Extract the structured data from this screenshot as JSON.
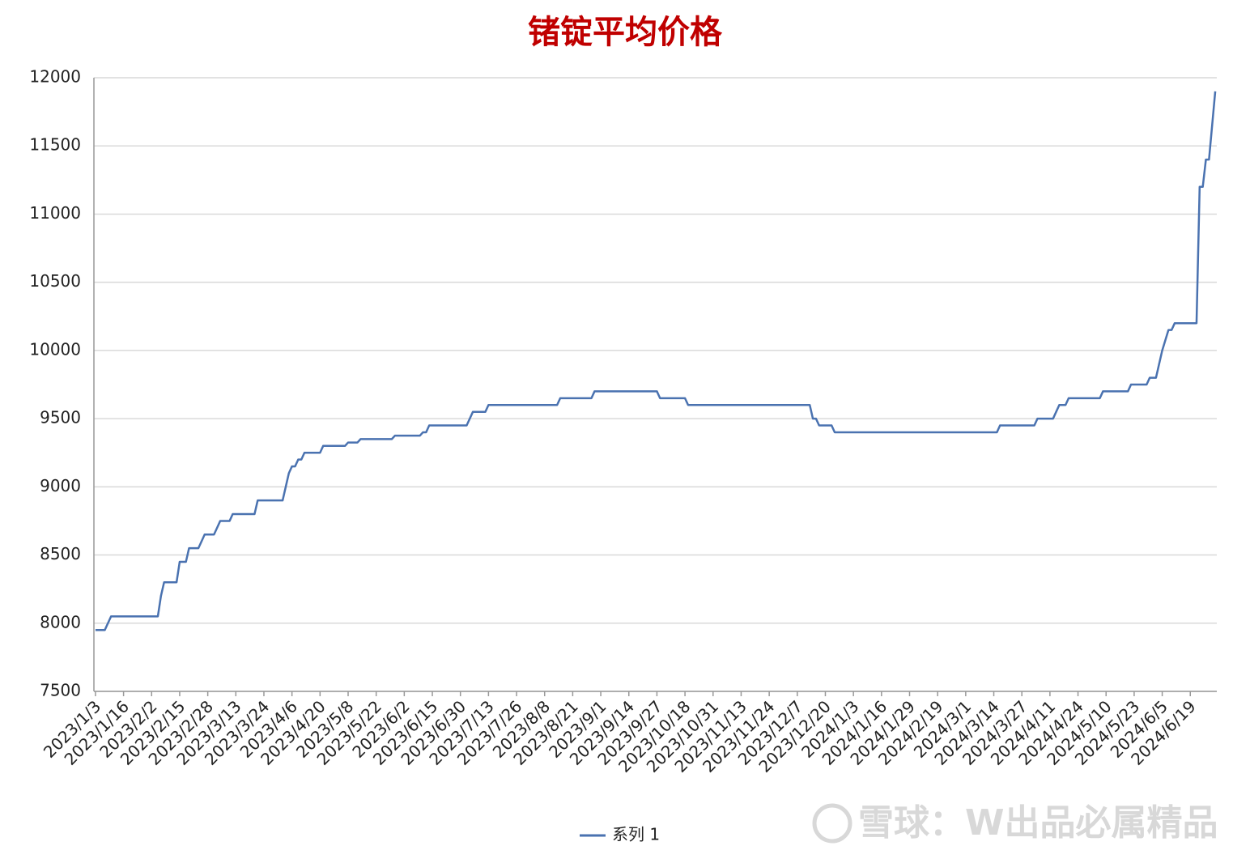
{
  "chart_data": {
    "type": "line",
    "title": "锗锭平均价格",
    "watermark": "雪球：W出品必属精品",
    "categories": [
      "2023/1/3",
      null,
      null,
      null,
      null,
      null,
      null,
      null,
      null,
      "2023/1/16",
      null,
      null,
      null,
      null,
      null,
      null,
      null,
      null,
      "2023/2/2",
      null,
      null,
      null,
      null,
      null,
      null,
      null,
      null,
      "2023/2/15",
      null,
      null,
      null,
      null,
      null,
      null,
      null,
      null,
      "2023/2/28",
      null,
      null,
      null,
      null,
      null,
      null,
      null,
      null,
      "2023/3/13",
      null,
      null,
      null,
      null,
      null,
      null,
      null,
      null,
      "2023/3/24",
      null,
      null,
      null,
      null,
      null,
      null,
      null,
      null,
      "2023/4/6",
      null,
      null,
      null,
      null,
      null,
      null,
      null,
      null,
      "2023/4/20",
      null,
      null,
      null,
      null,
      null,
      null,
      null,
      null,
      "2023/5/8",
      null,
      null,
      null,
      null,
      null,
      null,
      null,
      null,
      "2023/5/22",
      null,
      null,
      null,
      null,
      null,
      null,
      null,
      null,
      "2023/6/2",
      null,
      null,
      null,
      null,
      null,
      null,
      null,
      null,
      "2023/6/15",
      null,
      null,
      null,
      null,
      null,
      null,
      null,
      null,
      "2023/6/30",
      null,
      null,
      null,
      null,
      null,
      null,
      null,
      null,
      "2023/7/13",
      null,
      null,
      null,
      null,
      null,
      null,
      null,
      null,
      "2023/7/26",
      null,
      null,
      null,
      null,
      null,
      null,
      null,
      null,
      "2023/8/8",
      null,
      null,
      null,
      null,
      null,
      null,
      null,
      null,
      "2023/8/21",
      null,
      null,
      null,
      null,
      null,
      null,
      null,
      null,
      "2023/9/1",
      null,
      null,
      null,
      null,
      null,
      null,
      null,
      null,
      "2023/9/14",
      null,
      null,
      null,
      null,
      null,
      null,
      null,
      null,
      "2023/9/27",
      null,
      null,
      null,
      null,
      null,
      null,
      null,
      null,
      "2023/10/18",
      null,
      null,
      null,
      null,
      null,
      null,
      null,
      null,
      "2023/10/31",
      null,
      null,
      null,
      null,
      null,
      null,
      null,
      null,
      "2023/11/13",
      null,
      null,
      null,
      null,
      null,
      null,
      null,
      null,
      "2023/11/24",
      null,
      null,
      null,
      null,
      null,
      null,
      null,
      null,
      "2023/12/7",
      null,
      null,
      null,
      null,
      null,
      null,
      null,
      null,
      "2023/12/20",
      null,
      null,
      null,
      null,
      null,
      null,
      null,
      null,
      "2024/1/3",
      null,
      null,
      null,
      null,
      null,
      null,
      null,
      null,
      "2024/1/16",
      null,
      null,
      null,
      null,
      null,
      null,
      null,
      null,
      "2024/1/29",
      null,
      null,
      null,
      null,
      null,
      null,
      null,
      null,
      "2024/2/19",
      null,
      null,
      null,
      null,
      null,
      null,
      null,
      null,
      "2024/3/1",
      null,
      null,
      null,
      null,
      null,
      null,
      null,
      null,
      "2024/3/14",
      null,
      null,
      null,
      null,
      null,
      null,
      null,
      null,
      "2024/3/27",
      null,
      null,
      null,
      null,
      null,
      null,
      null,
      null,
      "2024/4/11",
      null,
      null,
      null,
      null,
      null,
      null,
      null,
      null,
      "2024/4/24",
      null,
      null,
      null,
      null,
      null,
      null,
      null,
      null,
      "2024/5/10",
      null,
      null,
      null,
      null,
      null,
      null,
      null,
      null,
      "2024/5/23",
      null,
      null,
      null,
      null,
      null,
      null,
      null,
      null,
      "2024/6/5",
      null,
      null,
      null,
      null,
      null,
      null,
      null,
      null,
      "2024/6/19",
      null,
      null,
      null,
      null,
      null,
      null,
      null,
      null
    ],
    "series": [
      {
        "name": "系列 1",
        "color": "#4a72b0",
        "values": [
          7950,
          7950,
          7950,
          7950,
          8000,
          8050,
          8050,
          8050,
          8050,
          8050,
          8050,
          8050,
          8050,
          8050,
          8050,
          8050,
          8050,
          8050,
          8050,
          8050,
          8050,
          8200,
          8300,
          8300,
          8300,
          8300,
          8300,
          8450,
          8450,
          8450,
          8550,
          8550,
          8550,
          8550,
          8600,
          8650,
          8650,
          8650,
          8650,
          8700,
          8750,
          8750,
          8750,
          8750,
          8800,
          8800,
          8800,
          8800,
          8800,
          8800,
          8800,
          8800,
          8900,
          8900,
          8900,
          8900,
          8900,
          8900,
          8900,
          8900,
          8900,
          9000,
          9100,
          9150,
          9150,
          9200,
          9200,
          9250,
          9250,
          9250,
          9250,
          9250,
          9250,
          9300,
          9300,
          9300,
          9300,
          9300,
          9300,
          9300,
          9300,
          9325,
          9325,
          9325,
          9325,
          9350,
          9350,
          9350,
          9350,
          9350,
          9350,
          9350,
          9350,
          9350,
          9350,
          9350,
          9375,
          9375,
          9375,
          9375,
          9375,
          9375,
          9375,
          9375,
          9375,
          9400,
          9400,
          9450,
          9450,
          9450,
          9450,
          9450,
          9450,
          9450,
          9450,
          9450,
          9450,
          9450,
          9450,
          9450,
          9500,
          9550,
          9550,
          9550,
          9550,
          9550,
          9600,
          9600,
          9600,
          9600,
          9600,
          9600,
          9600,
          9600,
          9600,
          9600,
          9600,
          9600,
          9600,
          9600,
          9600,
          9600,
          9600,
          9600,
          9600,
          9600,
          9600,
          9600,
          9600,
          9650,
          9650,
          9650,
          9650,
          9650,
          9650,
          9650,
          9650,
          9650,
          9650,
          9650,
          9700,
          9700,
          9700,
          9700,
          9700,
          9700,
          9700,
          9700,
          9700,
          9700,
          9700,
          9700,
          9700,
          9700,
          9700,
          9700,
          9700,
          9700,
          9700,
          9700,
          9700,
          9650,
          9650,
          9650,
          9650,
          9650,
          9650,
          9650,
          9650,
          9650,
          9600,
          9600,
          9600,
          9600,
          9600,
          9600,
          9600,
          9600,
          9600,
          9600,
          9600,
          9600,
          9600,
          9600,
          9600,
          9600,
          9600,
          9600,
          9600,
          9600,
          9600,
          9600,
          9600,
          9600,
          9600,
          9600,
          9600,
          9600,
          9600,
          9600,
          9600,
          9600,
          9600,
          9600,
          9600,
          9600,
          9600,
          9600,
          9600,
          9600,
          9500,
          9500,
          9450,
          9450,
          9450,
          9450,
          9450,
          9400,
          9400,
          9400,
          9400,
          9400,
          9400,
          9400,
          9400,
          9400,
          9400,
          9400,
          9400,
          9400,
          9400,
          9400,
          9400,
          9400,
          9400,
          9400,
          9400,
          9400,
          9400,
          9400,
          9400,
          9400,
          9400,
          9400,
          9400,
          9400,
          9400,
          9400,
          9400,
          9400,
          9400,
          9400,
          9400,
          9400,
          9400,
          9400,
          9400,
          9400,
          9400,
          9400,
          9400,
          9400,
          9400,
          9400,
          9400,
          9400,
          9400,
          9400,
          9400,
          9400,
          9450,
          9450,
          9450,
          9450,
          9450,
          9450,
          9450,
          9450,
          9450,
          9450,
          9450,
          9450,
          9500,
          9500,
          9500,
          9500,
          9500,
          9500,
          9550,
          9600,
          9600,
          9600,
          9650,
          9650,
          9650,
          9650,
          9650,
          9650,
          9650,
          9650,
          9650,
          9650,
          9650,
          9700,
          9700,
          9700,
          9700,
          9700,
          9700,
          9700,
          9700,
          9700,
          9750,
          9750,
          9750,
          9750,
          9750,
          9750,
          9800,
          9800,
          9800,
          9900,
          10000,
          10075,
          10150,
          10150,
          10200,
          10200,
          10200,
          10200,
          10200,
          10200,
          10200,
          10200,
          11200,
          11200,
          11400,
          11400,
          11650,
          11900
        ]
      }
    ],
    "ylim": [
      7500,
      12000
    ],
    "yticks": [
      7500,
      8000,
      8500,
      9000,
      9500,
      10000,
      10500,
      11000,
      11500,
      12000
    ],
    "grid": true,
    "legend": "bottom"
  }
}
